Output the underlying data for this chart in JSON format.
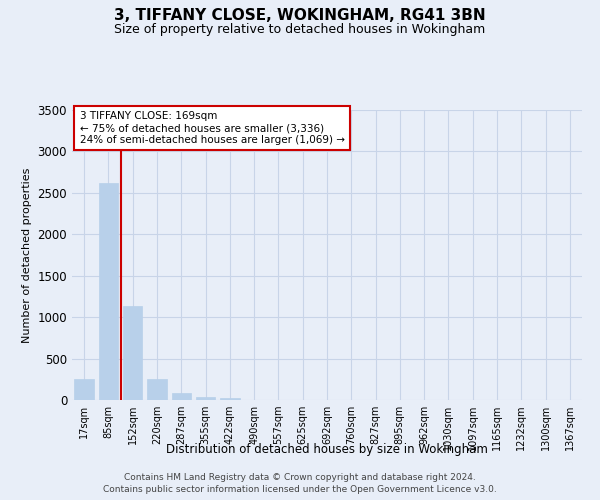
{
  "title": "3, TIFFANY CLOSE, WOKINGHAM, RG41 3BN",
  "subtitle": "Size of property relative to detached houses in Wokingham",
  "xlabel": "Distribution of detached houses by size in Wokingham",
  "ylabel": "Number of detached properties",
  "categories": [
    "17sqm",
    "85sqm",
    "152sqm",
    "220sqm",
    "287sqm",
    "355sqm",
    "422sqm",
    "490sqm",
    "557sqm",
    "625sqm",
    "692sqm",
    "760sqm",
    "827sqm",
    "895sqm",
    "962sqm",
    "1030sqm",
    "1097sqm",
    "1165sqm",
    "1232sqm",
    "1300sqm",
    "1367sqm"
  ],
  "values": [
    250,
    2620,
    1130,
    255,
    90,
    40,
    20,
    0,
    0,
    0,
    0,
    0,
    0,
    0,
    0,
    0,
    0,
    0,
    0,
    0,
    0
  ],
  "bar_color": "#b8d0ea",
  "bar_edge_color": "#b8d0ea",
  "grid_color": "#c8d4e8",
  "background_color": "#e8eef8",
  "vline_x": 1.5,
  "vline_color": "#cc0000",
  "annotation_text": "3 TIFFANY CLOSE: 169sqm\n← 75% of detached houses are smaller (3,336)\n24% of semi-detached houses are larger (1,069) →",
  "annotation_box_color": "#ffffff",
  "annotation_box_edge": "#cc0000",
  "ylim": [
    0,
    3500
  ],
  "yticks": [
    0,
    500,
    1000,
    1500,
    2000,
    2500,
    3000,
    3500
  ],
  "footer_line1": "Contains HM Land Registry data © Crown copyright and database right 2024.",
  "footer_line2": "Contains public sector information licensed under the Open Government Licence v3.0."
}
